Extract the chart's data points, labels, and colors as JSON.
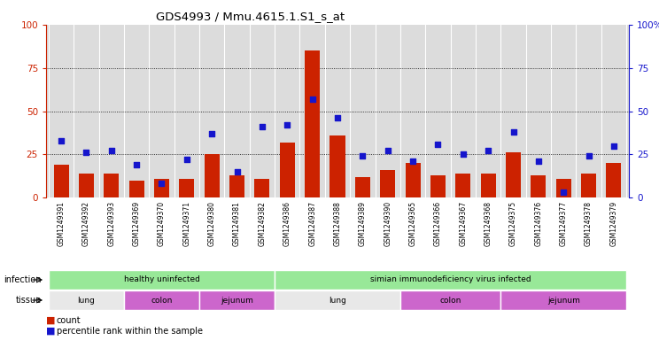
{
  "title": "GDS4993 / Mmu.4615.1.S1_s_at",
  "samples": [
    "GSM1249391",
    "GSM1249392",
    "GSM1249393",
    "GSM1249369",
    "GSM1249370",
    "GSM1249371",
    "GSM1249380",
    "GSM1249381",
    "GSM1249382",
    "GSM1249386",
    "GSM1249387",
    "GSM1249388",
    "GSM1249389",
    "GSM1249390",
    "GSM1249365",
    "GSM1249366",
    "GSM1249367",
    "GSM1249368",
    "GSM1249375",
    "GSM1249376",
    "GSM1249377",
    "GSM1249378",
    "GSM1249379"
  ],
  "counts": [
    19,
    14,
    14,
    10,
    11,
    11,
    25,
    13,
    11,
    32,
    85,
    36,
    12,
    16,
    20,
    13,
    14,
    14,
    26,
    13,
    11,
    14,
    20
  ],
  "percentiles": [
    33,
    26,
    27,
    19,
    8,
    22,
    37,
    15,
    41,
    42,
    57,
    46,
    24,
    27,
    21,
    31,
    25,
    27,
    38,
    21,
    3,
    24,
    30
  ],
  "bar_color": "#CC2200",
  "dot_color": "#1515CC",
  "left_axis_color": "#CC2200",
  "right_axis_color": "#1515CC",
  "yticks": [
    0,
    25,
    50,
    75,
    100
  ],
  "ylim": [
    0,
    100
  ],
  "plot_bg": "#DCDCDC",
  "inf_regions": [
    {
      "label": "healthy uninfected",
      "start": 0,
      "end": 9,
      "color": "#98E898"
    },
    {
      "label": "simian immunodeficiency virus infected",
      "start": 9,
      "end": 23,
      "color": "#98E898"
    }
  ],
  "tis_regions": [
    {
      "label": "lung",
      "start": 0,
      "end": 3,
      "color": "#E8E8E8"
    },
    {
      "label": "colon",
      "start": 3,
      "end": 6,
      "color": "#CC66CC"
    },
    {
      "label": "jejunum",
      "start": 6,
      "end": 9,
      "color": "#CC66CC"
    },
    {
      "label": "lung",
      "start": 9,
      "end": 14,
      "color": "#E8E8E8"
    },
    {
      "label": "colon",
      "start": 14,
      "end": 18,
      "color": "#CC66CC"
    },
    {
      "label": "jejunum",
      "start": 18,
      "end": 23,
      "color": "#CC66CC"
    }
  ]
}
